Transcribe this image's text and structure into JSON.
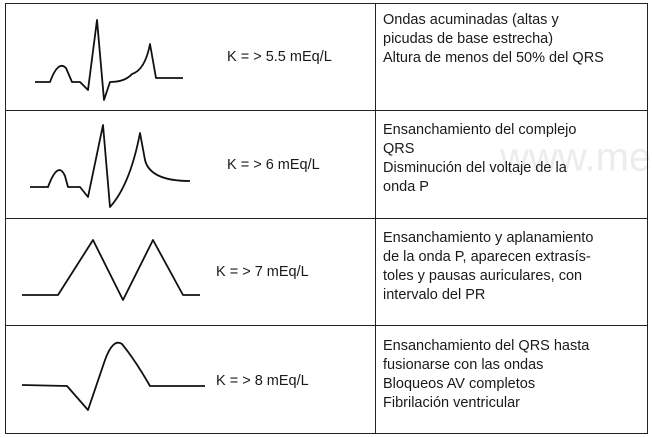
{
  "watermark": "www.medig",
  "rows": [
    {
      "potassium": "K = > 5.5 mEq/L",
      "description": [
        "Ondas acuminadas (altas y",
        "picudas de base estrecha)",
        "Altura de menos del 50% del QRS"
      ]
    },
    {
      "potassium": "K = > 6 mEq/L",
      "description": [
        "Ensanchamiento del complejo",
        "QRS",
        "Disminución del voltaje de la",
        "onda P"
      ]
    },
    {
      "potassium": "K = > 7 mEq/L",
      "description": [
        "Ensanchamiento y aplanamiento",
        "de la onda P, aparecen extrasís-",
        "toles y pausas auriculares, con",
        "intervalo del PR"
      ]
    },
    {
      "potassium": "K = > 8 mEq/L",
      "description": [
        "Ensanchamiento del QRS hasta",
        "fusionarse con las ondas",
        "Bloqueos AV completos",
        "Fibrilación ventricular"
      ]
    }
  ]
}
